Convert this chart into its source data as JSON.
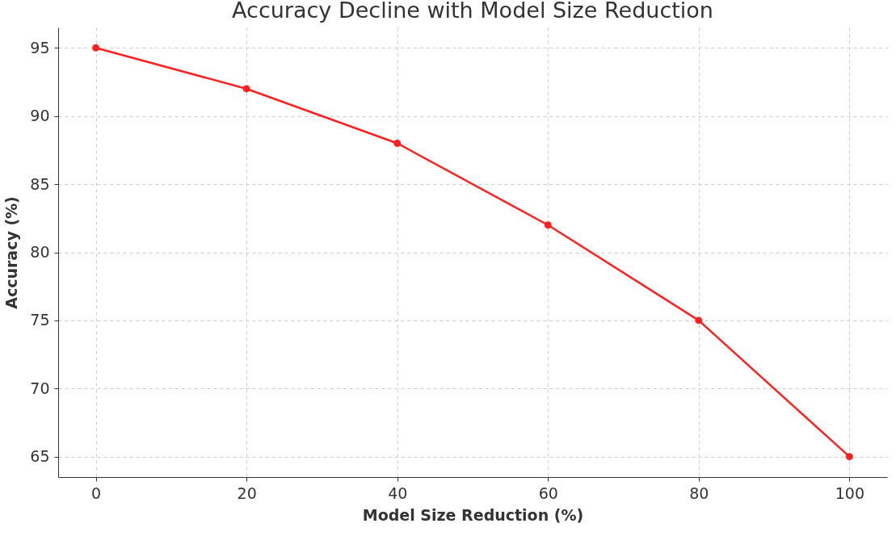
{
  "chart_data": {
    "type": "line",
    "title": "Accuracy Decline with Model Size Reduction",
    "xlabel": "Model Size Reduction (%)",
    "ylabel": "Accuracy (%)",
    "x": [
      0,
      20,
      40,
      60,
      80,
      100
    ],
    "series": [
      {
        "color": "#ff2020",
        "values": [
          95,
          92,
          88,
          82,
          75,
          65
        ]
      }
    ],
    "xlim": [
      -5,
      105
    ],
    "xticks": [
      0,
      20,
      40,
      60,
      80,
      100
    ],
    "ylim": [
      63.5,
      96.5
    ],
    "yticks": [
      65,
      70,
      75,
      80,
      85,
      90,
      95
    ],
    "grid": true,
    "marker": "circle",
    "line_style": "solid"
  }
}
